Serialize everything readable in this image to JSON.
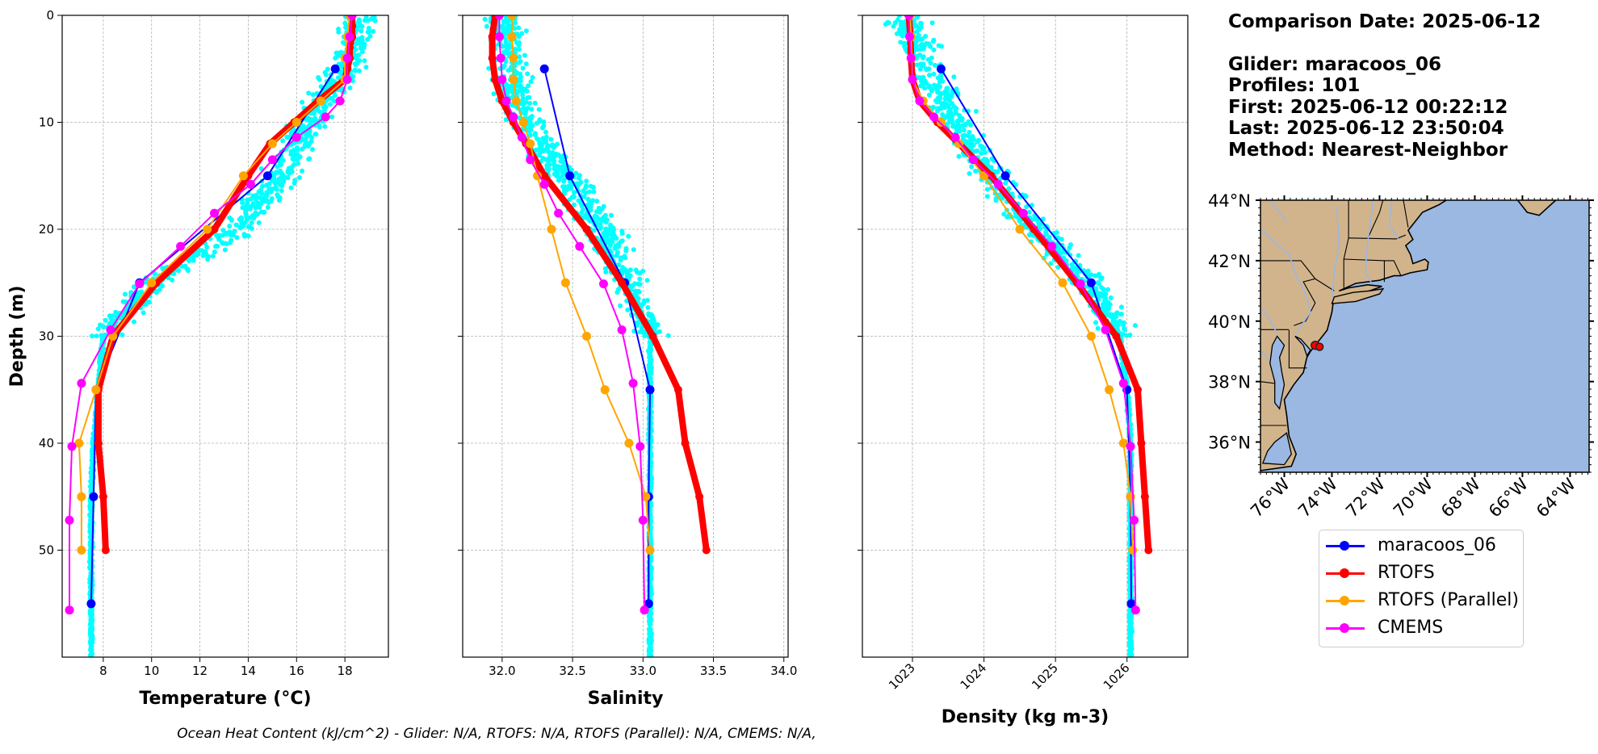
{
  "info": {
    "comparison_date": "Comparison Date: 2025-06-12",
    "glider": "Glider: maracoos_06",
    "profiles": "Profiles: 101",
    "first": "First: 2025-06-12 00:22:12",
    "last": "Last: 2025-06-12 23:50:04",
    "method": "Method: Nearest-Neighbor"
  },
  "footer": "Ocean Heat Content (kJ/cm^2) - Glider: N/A,  RTOFS: N/A,  RTOFS (Parallel): N/A,  CMEMS: N/A,",
  "colors": {
    "glider": "#0000ff",
    "rtofs": "#ff0000",
    "rtofs_parallel": "#ffa500",
    "cmems": "#ff00ff",
    "scatter": "#00ffff",
    "land": "#d2b48c",
    "ocean": "#9ab8e2"
  },
  "legend": {
    "items": [
      {
        "label": "maracoos_06",
        "color": "#0000ff"
      },
      {
        "label": "RTOFS",
        "color": "#ff0000"
      },
      {
        "label": "RTOFS (Parallel)",
        "color": "#ffa500"
      },
      {
        "label": "CMEMS",
        "color": "#ff00ff"
      }
    ]
  },
  "chart_data": [
    {
      "type": "line",
      "xlabel": "Temperature (°C)",
      "ylabel": "Depth (m)",
      "xlim": [
        6.3,
        19.8
      ],
      "ylim": [
        60,
        0
      ],
      "xticks": [
        "8",
        "10",
        "12",
        "14",
        "16",
        "18"
      ],
      "yticks": [
        "0",
        "10",
        "20",
        "30",
        "40",
        "50"
      ],
      "grid": true,
      "scatter_band": [
        [
          0,
          18.7
        ],
        [
          5,
          18.0
        ],
        [
          10,
          16.5
        ],
        [
          15,
          15.3
        ],
        [
          20,
          13.6
        ],
        [
          25,
          10.0
        ],
        [
          30,
          8.0
        ],
        [
          35,
          7.8
        ],
        [
          40,
          7.6
        ],
        [
          45,
          7.5
        ],
        [
          50,
          7.5
        ],
        [
          55,
          7.5
        ],
        [
          60,
          7.5
        ]
      ],
      "series": [
        {
          "name": "maracoos_06",
          "width": 2,
          "points": [
            [
              17.6,
              5
            ],
            [
              14.8,
              15
            ],
            [
              9.5,
              25
            ],
            [
              7.7,
              35
            ],
            [
              7.6,
              45
            ],
            [
              7.5,
              55
            ]
          ]
        },
        {
          "name": "RTOFS",
          "width": 8,
          "points": [
            [
              18.3,
              0
            ],
            [
              18.3,
              1
            ],
            [
              18.3,
              2
            ],
            [
              18.2,
              3
            ],
            [
              18.2,
              4
            ],
            [
              18.1,
              5
            ],
            [
              18.0,
              6
            ],
            [
              16.9,
              8
            ],
            [
              15.9,
              10
            ],
            [
              14.9,
              12
            ],
            [
              14.0,
              15
            ],
            [
              12.6,
              20
            ],
            [
              10.2,
              25
            ],
            [
              8.4,
              30
            ],
            [
              7.8,
              35
            ],
            [
              7.8,
              40
            ],
            [
              8.0,
              45
            ],
            [
              8.1,
              50
            ]
          ]
        },
        {
          "name": "RTOFS (Parallel)",
          "width": 2,
          "points": [
            [
              18.2,
              0
            ],
            [
              18.1,
              2
            ],
            [
              18.0,
              4
            ],
            [
              18.0,
              6
            ],
            [
              17.0,
              8
            ],
            [
              16.0,
              10
            ],
            [
              15.0,
              12
            ],
            [
              13.8,
              15
            ],
            [
              12.3,
              20
            ],
            [
              10.0,
              25
            ],
            [
              8.4,
              30
            ],
            [
              7.7,
              35
            ],
            [
              7.0,
              40
            ],
            [
              7.1,
              45
            ],
            [
              7.1,
              50
            ]
          ]
        },
        {
          "name": "CMEMS",
          "width": 2,
          "points": [
            [
              18.3,
              0
            ],
            [
              18.2,
              2
            ],
            [
              18.1,
              4
            ],
            [
              18.1,
              6
            ],
            [
              17.8,
              8
            ],
            [
              17.2,
              9.5
            ],
            [
              16.0,
              11.4
            ],
            [
              15.0,
              13.5
            ],
            [
              14.1,
              15.8
            ],
            [
              12.6,
              18.5
            ],
            [
              11.2,
              21.6
            ],
            [
              9.5,
              25.1
            ],
            [
              8.3,
              29.4
            ],
            [
              7.1,
              34.4
            ],
            [
              6.7,
              40.3
            ],
            [
              6.6,
              47.2
            ],
            [
              6.6,
              55.6
            ]
          ]
        }
      ]
    },
    {
      "type": "line",
      "xlabel": "Salinity",
      "ylabel": "",
      "xlim": [
        31.72,
        34.03
      ],
      "ylim": [
        60,
        0
      ],
      "xticks": [
        "32.0",
        "32.5",
        "33.0",
        "33.5",
        "34.0"
      ],
      "grid": true,
      "scatter_band": [
        [
          0,
          32.0
        ],
        [
          5,
          32.05
        ],
        [
          10,
          32.15
        ],
        [
          15,
          32.45
        ],
        [
          20,
          32.7
        ],
        [
          25,
          32.9
        ],
        [
          30,
          33.05
        ],
        [
          35,
          33.05
        ],
        [
          40,
          33.05
        ],
        [
          45,
          33.05
        ],
        [
          50,
          33.05
        ],
        [
          55,
          33.05
        ],
        [
          60,
          33.05
        ]
      ],
      "series": [
        {
          "name": "maracoos_06",
          "width": 2,
          "points": [
            [
              32.3,
              5
            ],
            [
              32.48,
              15
            ],
            [
              32.87,
              25
            ],
            [
              33.05,
              35
            ],
            [
              33.04,
              45
            ],
            [
              33.04,
              55
            ]
          ]
        },
        {
          "name": "RTOFS",
          "width": 8,
          "points": [
            [
              31.95,
              0
            ],
            [
              31.93,
              2
            ],
            [
              31.93,
              4
            ],
            [
              31.95,
              6
            ],
            [
              32.0,
              8
            ],
            [
              32.08,
              10
            ],
            [
              32.17,
              12
            ],
            [
              32.3,
              15
            ],
            [
              32.6,
              20
            ],
            [
              32.85,
              25
            ],
            [
              33.07,
              30
            ],
            [
              33.25,
              35
            ],
            [
              33.3,
              40
            ],
            [
              33.4,
              45
            ],
            [
              33.45,
              50
            ]
          ]
        },
        {
          "name": "RTOFS (Parallel)",
          "width": 2,
          "points": [
            [
              32.07,
              0
            ],
            [
              32.07,
              2
            ],
            [
              32.08,
              4
            ],
            [
              32.08,
              6
            ],
            [
              32.1,
              8
            ],
            [
              32.15,
              10
            ],
            [
              32.2,
              12
            ],
            [
              32.25,
              15
            ],
            [
              32.35,
              20
            ],
            [
              32.45,
              25
            ],
            [
              32.6,
              30
            ],
            [
              32.73,
              35
            ],
            [
              32.9,
              40
            ],
            [
              33.02,
              45
            ],
            [
              33.05,
              50
            ]
          ]
        },
        {
          "name": "CMEMS",
          "width": 2,
          "points": [
            [
              31.98,
              0
            ],
            [
              31.98,
              2
            ],
            [
              31.99,
              4
            ],
            [
              32.0,
              6
            ],
            [
              32.03,
              8
            ],
            [
              32.08,
              9.5
            ],
            [
              32.14,
              11.4
            ],
            [
              32.2,
              13.5
            ],
            [
              32.3,
              15.8
            ],
            [
              32.4,
              18.5
            ],
            [
              32.55,
              21.6
            ],
            [
              32.72,
              25.1
            ],
            [
              32.85,
              29.4
            ],
            [
              32.93,
              34.4
            ],
            [
              32.98,
              40.3
            ],
            [
              33.0,
              47.2
            ],
            [
              33.01,
              55.6
            ]
          ]
        }
      ]
    },
    {
      "type": "line",
      "xlabel": "Density (kg m-3)",
      "ylabel": "",
      "xlim": [
        1022.3,
        1026.85
      ],
      "ylim": [
        60,
        0
      ],
      "xticks": [
        "1023",
        "1024",
        "1025",
        "1026"
      ],
      "grid": true,
      "scatter_band": [
        [
          0,
          1022.9
        ],
        [
          5,
          1023.2
        ],
        [
          10,
          1023.6
        ],
        [
          15,
          1024.1
        ],
        [
          20,
          1024.7
        ],
        [
          25,
          1025.5
        ],
        [
          30,
          1025.9
        ],
        [
          35,
          1026.0
        ],
        [
          40,
          1026.05
        ],
        [
          45,
          1026.05
        ],
        [
          50,
          1026.05
        ],
        [
          55,
          1026.05
        ],
        [
          60,
          1026.05
        ]
      ],
      "series": [
        {
          "name": "maracoos_06",
          "width": 2,
          "points": [
            [
              1023.4,
              5
            ],
            [
              1024.3,
              15
            ],
            [
              1025.5,
              25
            ],
            [
              1026.0,
              35
            ],
            [
              1026.05,
              45
            ],
            [
              1026.06,
              55
            ]
          ]
        },
        {
          "name": "RTOFS",
          "width": 8,
          "points": [
            [
              1022.95,
              0
            ],
            [
              1022.97,
              2
            ],
            [
              1022.98,
              4
            ],
            [
              1023.0,
              6
            ],
            [
              1023.1,
              8
            ],
            [
              1023.35,
              10
            ],
            [
              1023.65,
              12
            ],
            [
              1024.1,
              15
            ],
            [
              1024.7,
              20
            ],
            [
              1025.3,
              25
            ],
            [
              1025.85,
              30
            ],
            [
              1026.15,
              35
            ],
            [
              1026.2,
              40
            ],
            [
              1026.25,
              45
            ],
            [
              1026.3,
              50
            ]
          ]
        },
        {
          "name": "RTOFS (Parallel)",
          "width": 2,
          "points": [
            [
              1022.97,
              0
            ],
            [
              1022.98,
              2
            ],
            [
              1022.99,
              4
            ],
            [
              1023.0,
              6
            ],
            [
              1023.15,
              8
            ],
            [
              1023.4,
              10
            ],
            [
              1023.65,
              12
            ],
            [
              1024.0,
              15
            ],
            [
              1024.5,
              20
            ],
            [
              1025.1,
              25
            ],
            [
              1025.5,
              30
            ],
            [
              1025.75,
              35
            ],
            [
              1025.95,
              40
            ],
            [
              1026.05,
              45
            ],
            [
              1026.08,
              50
            ]
          ]
        },
        {
          "name": "CMEMS",
          "width": 2,
          "points": [
            [
              1022.95,
              0
            ],
            [
              1022.96,
              2
            ],
            [
              1022.98,
              4
            ],
            [
              1023.0,
              6
            ],
            [
              1023.1,
              8
            ],
            [
              1023.3,
              9.5
            ],
            [
              1023.6,
              11.4
            ],
            [
              1023.85,
              13.5
            ],
            [
              1024.2,
              15.8
            ],
            [
              1024.55,
              18.5
            ],
            [
              1024.95,
              21.6
            ],
            [
              1025.35,
              25.1
            ],
            [
              1025.7,
              29.4
            ],
            [
              1025.95,
              34.4
            ],
            [
              1026.05,
              40.3
            ],
            [
              1026.1,
              47.2
            ],
            [
              1026.12,
              55.6
            ]
          ]
        }
      ]
    }
  ],
  "map": {
    "lat_labels": [
      "44°N",
      "42°N",
      "40°N",
      "38°N",
      "36°N"
    ],
    "lon_labels": [
      "76°W",
      "74°W",
      "72°W",
      "70°W",
      "68°W",
      "66°W",
      "64°W"
    ],
    "lat_values": [
      44,
      42,
      40,
      38,
      36
    ],
    "lon_values": [
      -76,
      -74,
      -72,
      -70,
      -68,
      -66,
      -64
    ],
    "lon_range": [
      -77.0,
      -63.2
    ],
    "lat_range": [
      35.0,
      44.0
    ],
    "glider_location": {
      "lon": -74.7,
      "lat": 39.2
    }
  }
}
